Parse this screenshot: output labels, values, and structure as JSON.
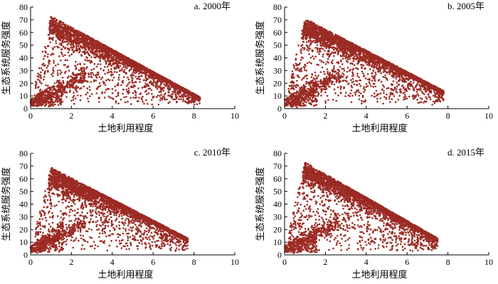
{
  "figure": {
    "point_color": "#9b2b24"
  },
  "chart_data": [
    {
      "type": "scatter",
      "panel_id": "a",
      "title": "a. 2000年",
      "xlabel": "土地利用程度",
      "ylabel": "生态系统服务强度",
      "xlim": [
        0,
        10
      ],
      "ylim": [
        0,
        80
      ],
      "xticks": [
        0,
        2,
        4,
        6,
        8,
        10
      ],
      "yticks": [
        0,
        10,
        20,
        30,
        40,
        50,
        60,
        70,
        80
      ],
      "grid": false,
      "x_max_extent": 8.3,
      "peak": [
        1.0,
        73
      ],
      "end": [
        8.2,
        10
      ]
    },
    {
      "type": "scatter",
      "panel_id": "b",
      "title": "b. 2005年",
      "xlabel": "土地利用程度",
      "ylabel": "生态系统服务强度",
      "xlim": [
        0,
        10
      ],
      "ylim": [
        0,
        80
      ],
      "xticks": [
        0,
        2,
        4,
        6,
        8,
        10
      ],
      "yticks": [
        0,
        10,
        20,
        30,
        40,
        50,
        60,
        70,
        80
      ],
      "grid": false,
      "x_max_extent": 7.8,
      "peak": [
        1.0,
        71
      ],
      "end": [
        7.8,
        14
      ]
    },
    {
      "type": "scatter",
      "panel_id": "c",
      "title": "c. 2010年",
      "xlabel": "土地利用程度",
      "ylabel": "生态系统服务强度",
      "xlim": [
        0,
        10
      ],
      "ylim": [
        0,
        80
      ],
      "xticks": [
        0,
        2,
        4,
        6,
        8,
        10
      ],
      "yticks": [
        0,
        10,
        20,
        30,
        40,
        50,
        60,
        70,
        80
      ],
      "grid": false,
      "x_max_extent": 7.7,
      "peak": [
        1.0,
        69
      ],
      "end": [
        7.6,
        14
      ]
    },
    {
      "type": "scatter",
      "panel_id": "d",
      "title": "d. 2015年",
      "xlabel": "土地利用程度",
      "ylabel": "生态系统服务强度",
      "xlim": [
        0,
        10
      ],
      "ylim": [
        0,
        80
      ],
      "xticks": [
        0,
        2,
        4,
        6,
        8,
        10
      ],
      "yticks": [
        0,
        10,
        20,
        30,
        40,
        50,
        60,
        70,
        80
      ],
      "grid": false,
      "x_max_extent": 7.5,
      "peak": [
        1.0,
        73
      ],
      "end": [
        7.4,
        14
      ]
    }
  ]
}
